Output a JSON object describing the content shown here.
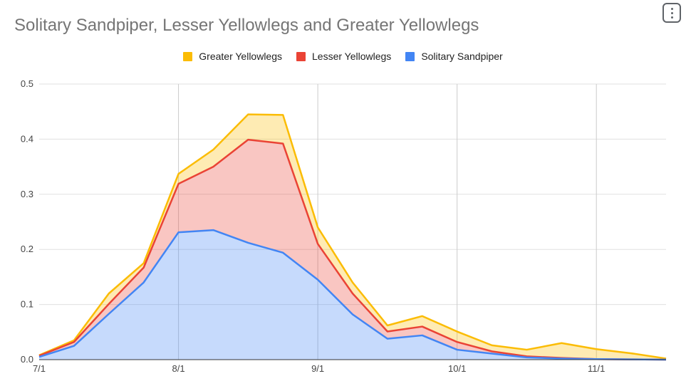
{
  "title": "Solitary Sandpiper, Lesser Yellowlegs and Greater Yellowlegs",
  "menu_icon": "more-vert-icon",
  "chart_data": {
    "type": "area",
    "stacked": true,
    "title": "Solitary Sandpiper, Lesser Yellowlegs and Greater Yellowlegs",
    "xlabel": "",
    "ylabel": "",
    "ylim": [
      0,
      0.5
    ],
    "yticks": [
      "0.0",
      "0.1",
      "0.2",
      "0.3",
      "0.4",
      "0.5"
    ],
    "xtick_labels": [
      "7/1",
      "8/1",
      "9/1",
      "10/1",
      "11/1"
    ],
    "x": [
      "7/1",
      "7/8",
      "7/15",
      "7/22",
      "8/1",
      "8/8",
      "8/15",
      "8/22",
      "9/1",
      "9/8",
      "9/15",
      "9/22",
      "10/1",
      "10/8",
      "10/15",
      "10/22",
      "11/1",
      "11/8",
      "11/15"
    ],
    "grid": true,
    "legend_position": "top",
    "series": [
      {
        "name": "Solitary Sandpiper",
        "color": "#4285f4",
        "values": [
          0.005,
          0.025,
          0.083,
          0.14,
          0.231,
          0.235,
          0.212,
          0.194,
          0.145,
          0.082,
          0.038,
          0.044,
          0.018,
          0.011,
          0.004,
          0.002,
          0.001,
          0.0005,
          0.0
        ]
      },
      {
        "name": "Lesser Yellowlegs",
        "color": "#ea4335",
        "values": [
          0.002,
          0.007,
          0.018,
          0.027,
          0.088,
          0.115,
          0.187,
          0.198,
          0.065,
          0.038,
          0.013,
          0.016,
          0.014,
          0.004,
          0.002,
          0.001,
          0.0,
          0.0,
          0.0
        ]
      },
      {
        "name": "Greater Yellowlegs",
        "color": "#fbbc04",
        "values": [
          0.001,
          0.003,
          0.019,
          0.008,
          0.018,
          0.031,
          0.046,
          0.052,
          0.03,
          0.02,
          0.011,
          0.019,
          0.019,
          0.011,
          0.012,
          0.027,
          0.018,
          0.011,
          0.002
        ]
      }
    ],
    "legend_order": [
      "Greater Yellowlegs",
      "Lesser Yellowlegs",
      "Solitary Sandpiper"
    ]
  }
}
